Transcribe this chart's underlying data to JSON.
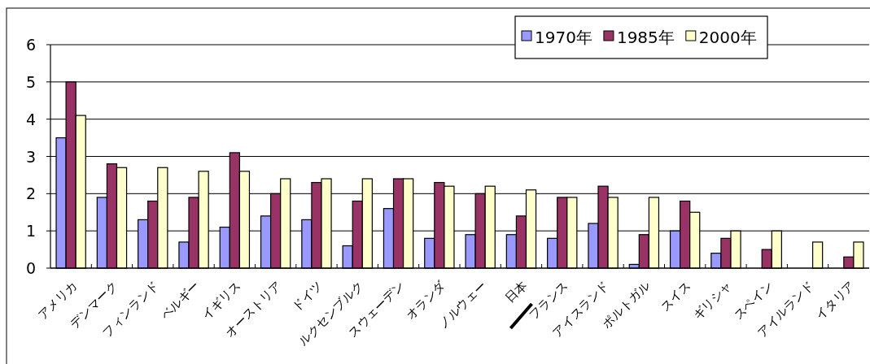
{
  "chart_data": {
    "type": "bar",
    "categories": [
      "アメリカ",
      "デンマーク",
      "フィンランド",
      "ベルギー",
      "イギリス",
      "オーストリア",
      "ドイツ",
      "ルクセンブルク",
      "スウェーデン",
      "オランダ",
      "ノルウェー",
      "日本",
      "フランス",
      "アイスランド",
      "ポルトガル",
      "スイス",
      "ギリシャ",
      "スペイン",
      "アイルランド",
      "イタリア"
    ],
    "series": [
      {
        "name": "1970年",
        "color": "#9999ff",
        "values": [
          3.5,
          1.9,
          1.3,
          0.7,
          1.1,
          1.4,
          1.3,
          0.6,
          1.6,
          0.8,
          0.9,
          0.9,
          0.8,
          1.2,
          0.1,
          1.0,
          0.4,
          null,
          null,
          null
        ]
      },
      {
        "name": "1985年",
        "color": "#993366",
        "values": [
          5.0,
          2.8,
          1.8,
          1.9,
          3.1,
          2.0,
          2.3,
          1.8,
          2.4,
          2.3,
          2.0,
          1.4,
          1.9,
          2.2,
          0.9,
          1.8,
          0.8,
          0.5,
          null,
          0.3
        ]
      },
      {
        "name": "2000年",
        "color": "#ffffcc",
        "values": [
          4.1,
          2.7,
          2.7,
          2.6,
          2.6,
          2.4,
          2.4,
          2.4,
          2.4,
          2.2,
          2.2,
          2.1,
          1.9,
          1.9,
          1.9,
          1.5,
          1.0,
          1.0,
          0.7,
          0.7
        ]
      }
    ],
    "ylim": [
      0,
      6
    ],
    "yticks": [
      0,
      1,
      2,
      3,
      4,
      5,
      6
    ],
    "grid": "y",
    "legend": "top"
  }
}
